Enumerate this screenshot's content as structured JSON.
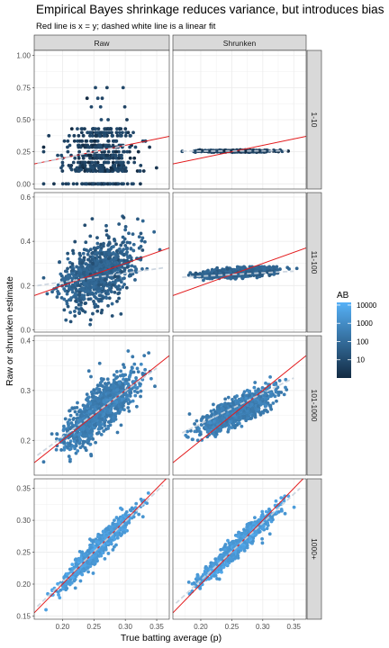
{
  "chart_data": {
    "type": "scatter",
    "title": "Empirical Bayes shrinkage reduces variance, but introduces bias",
    "subtitle": "Red line is x = y; dashed white line is a linear fit",
    "xlabel": "True batting average (p)",
    "ylabel": "Raw or shrunken estimate",
    "columns": [
      "Raw",
      "Shrunken"
    ],
    "rows": [
      "1-10",
      "11-100",
      "101-1000",
      "1000+"
    ],
    "xlim": [
      0.155,
      0.37
    ],
    "x_ticks": [
      0.2,
      0.25,
      0.3,
      0.35
    ],
    "x_tick_labels": [
      "0.20",
      "0.25",
      "0.30",
      "0.35"
    ],
    "row_ylims": [
      [
        -0.04,
        1.04
      ],
      [
        -0.01,
        0.62
      ],
      [
        0.13,
        0.41
      ],
      [
        0.145,
        0.365
      ]
    ],
    "row_y_ticks": [
      {
        "values": [
          0.0,
          0.25,
          0.5,
          0.75,
          1.0
        ],
        "labels": [
          "0.00",
          "0.25",
          "0.50",
          "0.75",
          "1.00"
        ]
      },
      {
        "values": [
          0.0,
          0.2,
          0.4,
          0.6
        ],
        "labels": [
          "0.0",
          "0.2",
          "0.4",
          "0.6"
        ]
      },
      {
        "values": [
          0.2,
          0.3,
          0.4
        ],
        "labels": [
          "0.2",
          "0.3",
          "0.4"
        ]
      },
      {
        "values": [
          0.15,
          0.2,
          0.25,
          0.3,
          0.35
        ],
        "labels": [
          "0.15",
          "0.20",
          "0.25",
          "0.30",
          "0.35"
        ]
      }
    ],
    "reference_line": {
      "label": "x = y",
      "color": "#e31a1c"
    },
    "fit_lines": [
      {
        "row": "1-10",
        "panel": "Raw",
        "x": [
          0.16,
          0.3
        ],
        "y": [
          0.16,
          0.3
        ]
      },
      {
        "row": "1-10",
        "panel": "Shrunken",
        "x": [
          0.17,
          0.34
        ],
        "y": [
          0.255,
          0.258
        ]
      },
      {
        "row": "11-100",
        "panel": "Raw",
        "x": [
          0.16,
          0.36
        ],
        "y": [
          0.2,
          0.28
        ]
      },
      {
        "row": "11-100",
        "panel": "Shrunken",
        "x": [
          0.17,
          0.35
        ],
        "y": [
          0.238,
          0.265
        ]
      },
      {
        "row": "101-1000",
        "panel": "Raw",
        "x": [
          0.16,
          0.35
        ],
        "y": [
          0.17,
          0.345
        ]
      },
      {
        "row": "101-1000",
        "panel": "Shrunken",
        "x": [
          0.17,
          0.35
        ],
        "y": [
          0.215,
          0.325
        ]
      },
      {
        "row": "1000+",
        "panel": "Raw",
        "x": [
          0.16,
          0.36
        ],
        "y": [
          0.165,
          0.355
        ]
      },
      {
        "row": "1000+",
        "panel": "Shrunken",
        "x": [
          0.16,
          0.36
        ],
        "y": [
          0.17,
          0.35
        ]
      }
    ],
    "series_summary": [
      {
        "row": "1-10",
        "panel": "Raw",
        "x_range": [
          0.17,
          0.33
        ],
        "y_values": [
          0.0,
          0.1,
          0.111,
          0.125,
          0.143,
          0.167,
          0.2,
          0.222,
          0.25,
          0.286,
          0.3,
          0.333,
          0.375,
          0.4,
          0.429,
          0.5,
          0.6,
          0.667,
          0.75,
          1.0
        ]
      },
      {
        "row": "1-10",
        "panel": "Shrunken",
        "y_range": [
          0.245,
          0.265
        ]
      },
      {
        "row": "11-100",
        "panel": "Raw",
        "y_range": [
          0.0,
          0.6
        ]
      },
      {
        "row": "11-100",
        "panel": "Shrunken",
        "y_range": [
          0.21,
          0.285
        ]
      },
      {
        "row": "101-1000",
        "panel": "Raw",
        "y_range": [
          0.15,
          0.4
        ]
      },
      {
        "row": "101-1000",
        "panel": "Shrunken",
        "y_range": [
          0.2,
          0.34
        ]
      },
      {
        "row": "1000+",
        "panel": "Raw",
        "y_range": [
          0.15,
          0.35
        ]
      },
      {
        "row": "1000+",
        "panel": "Shrunken",
        "y_range": [
          0.16,
          0.35
        ]
      }
    ],
    "legend": {
      "title": "AB",
      "scale": "log",
      "breaks": [
        10,
        100,
        1000,
        10000
      ],
      "labels": [
        "10",
        "100",
        "1000",
        "10000"
      ],
      "color_low": "#132b43",
      "color_high": "#56b1f7",
      "placement": "right"
    },
    "grid": true
  }
}
